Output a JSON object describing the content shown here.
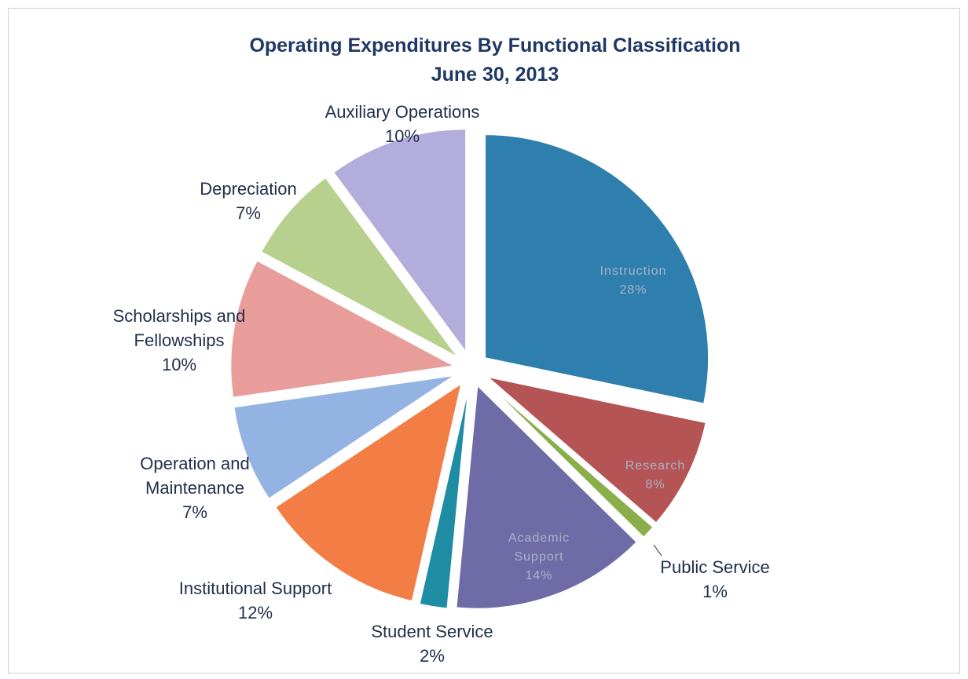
{
  "chart_data": {
    "type": "pie",
    "title": "Operating Expenditures By Functional Classification",
    "subtitle": "June 30, 2013",
    "slices": [
      {
        "label": "Instruction",
        "percent": 28,
        "percent_text": "28%",
        "color": "#2e7fad",
        "label_position": "inside"
      },
      {
        "label": "Research",
        "percent": 8,
        "percent_text": "8%",
        "color": "#b55454",
        "label_position": "inside"
      },
      {
        "label": "Public Service",
        "percent": 1,
        "percent_text": "1%",
        "color": "#8aae4a",
        "label_position": "outside"
      },
      {
        "label": "Academic Support",
        "percent": 14,
        "percent_text": "14%",
        "color": "#6f6ba6",
        "label_position": "inside"
      },
      {
        "label": "Student Service",
        "percent": 2,
        "percent_text": "2%",
        "color": "#1e8ca3",
        "label_position": "outside"
      },
      {
        "label": "Institutional Support",
        "percent": 12,
        "percent_text": "12%",
        "color": "#f27d45",
        "label_position": "outside"
      },
      {
        "label": "Operation and Maintenance",
        "percent": 7,
        "percent_text": "7%",
        "color": "#93b3e3",
        "label_position": "outside"
      },
      {
        "label": "Scholarships and Fellowships",
        "percent": 10,
        "percent_text": "10%",
        "color": "#e99d9b",
        "label_position": "outside"
      },
      {
        "label": "Depreciation",
        "percent": 7,
        "percent_text": "7%",
        "color": "#b7d08e",
        "label_position": "outside"
      },
      {
        "label": "Auxiliary Operations",
        "percent": 10,
        "percent_text": "10%",
        "color": "#b3addb",
        "label_position": "outside"
      }
    ],
    "legend": "none"
  }
}
